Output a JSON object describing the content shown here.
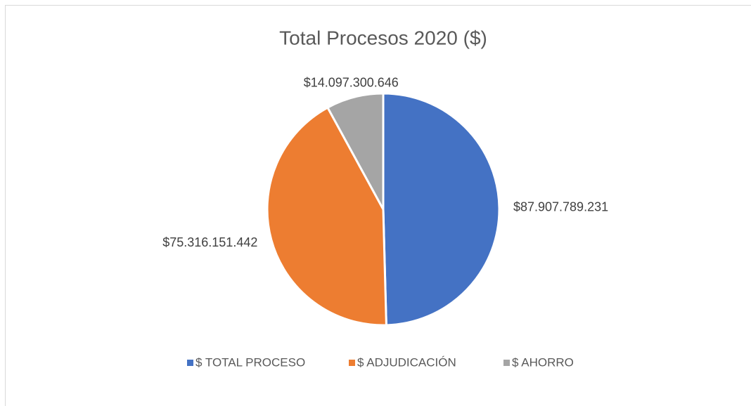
{
  "chart_data": {
    "type": "pie",
    "title": "Total Procesos 2020 ($)",
    "categories": [
      "$ TOTAL PROCESO",
      "$ ADJUDICACIÓN",
      "$ AHORRO"
    ],
    "values": [
      87907789231,
      75316151442,
      14097300646
    ],
    "value_labels": [
      "$87.907.789.231",
      "$75.316.151.442",
      "$14.097.300.646"
    ],
    "colors": [
      "#4472c4",
      "#ed7d31",
      "#a5a5a5"
    ],
    "legend": "bottom"
  }
}
